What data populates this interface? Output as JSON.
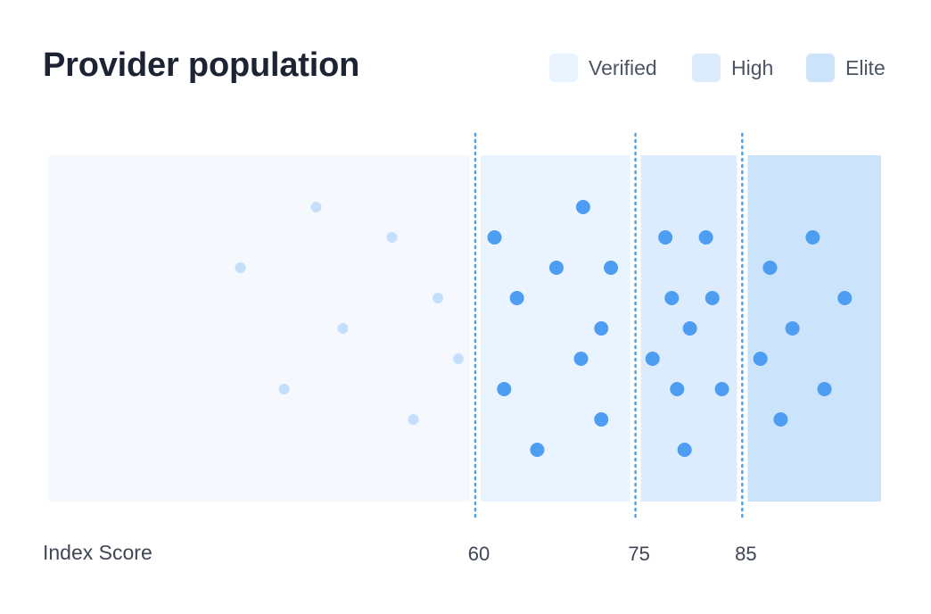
{
  "title": "Provider population",
  "legend": [
    {
      "label": "Verified",
      "color": "#eaf4fe"
    },
    {
      "label": "High",
      "color": "#dcecfd"
    },
    {
      "label": "Elite",
      "color": "#cbe3fb"
    }
  ],
  "chart_data": {
    "type": "scatter",
    "title": "Provider population",
    "xlabel": "Index Score",
    "ylabel": "",
    "xlim": [
      20,
      98
    ],
    "thresholds": [
      60,
      75,
      85
    ],
    "bands": [
      {
        "name": "Verified",
        "from": 60,
        "to": 75,
        "color": "#eaf4fe"
      },
      {
        "name": "High",
        "from": 75,
        "to": 85,
        "color": "#dcecfd"
      },
      {
        "name": "Elite",
        "from": 85,
        "to": 98,
        "color": "#cbe3fb"
      }
    ],
    "base_band_color": "#f5f9fe",
    "threshold_color": "#4aa3ea",
    "point_color_active": "#4d9df2",
    "point_color_inactive": "#c4dffb",
    "ticks": [
      {
        "value": 60,
        "label": "60"
      },
      {
        "value": 75,
        "label": "75"
      },
      {
        "value": 85,
        "label": "85"
      }
    ],
    "points": [
      {
        "x": 45.1,
        "row": 1,
        "inactive": true
      },
      {
        "x": 70.1,
        "row": 1
      },
      {
        "x": 52.2,
        "row": 2,
        "inactive": true
      },
      {
        "x": 61.8,
        "row": 2
      },
      {
        "x": 77.8,
        "row": 2
      },
      {
        "x": 81.6,
        "row": 2
      },
      {
        "x": 91.6,
        "row": 2
      },
      {
        "x": 38.0,
        "row": 3,
        "inactive": true
      },
      {
        "x": 67.6,
        "row": 3
      },
      {
        "x": 72.7,
        "row": 3
      },
      {
        "x": 87.6,
        "row": 3
      },
      {
        "x": 56.5,
        "row": 4,
        "inactive": true
      },
      {
        "x": 63.9,
        "row": 4
      },
      {
        "x": 78.4,
        "row": 4
      },
      {
        "x": 82.2,
        "row": 4
      },
      {
        "x": 94.6,
        "row": 4
      },
      {
        "x": 47.6,
        "row": 5,
        "inactive": true
      },
      {
        "x": 71.8,
        "row": 5
      },
      {
        "x": 80.1,
        "row": 5
      },
      {
        "x": 89.7,
        "row": 5
      },
      {
        "x": 58.4,
        "row": 6,
        "inactive": true
      },
      {
        "x": 69.9,
        "row": 6
      },
      {
        "x": 76.6,
        "row": 6
      },
      {
        "x": 86.7,
        "row": 6
      },
      {
        "x": 42.1,
        "row": 7,
        "inactive": true
      },
      {
        "x": 62.7,
        "row": 7
      },
      {
        "x": 78.9,
        "row": 7
      },
      {
        "x": 83.1,
        "row": 7
      },
      {
        "x": 92.7,
        "row": 7
      },
      {
        "x": 54.2,
        "row": 8,
        "inactive": true
      },
      {
        "x": 71.8,
        "row": 8
      },
      {
        "x": 88.6,
        "row": 8
      },
      {
        "x": 65.8,
        "row": 9
      },
      {
        "x": 79.6,
        "row": 9
      }
    ]
  }
}
